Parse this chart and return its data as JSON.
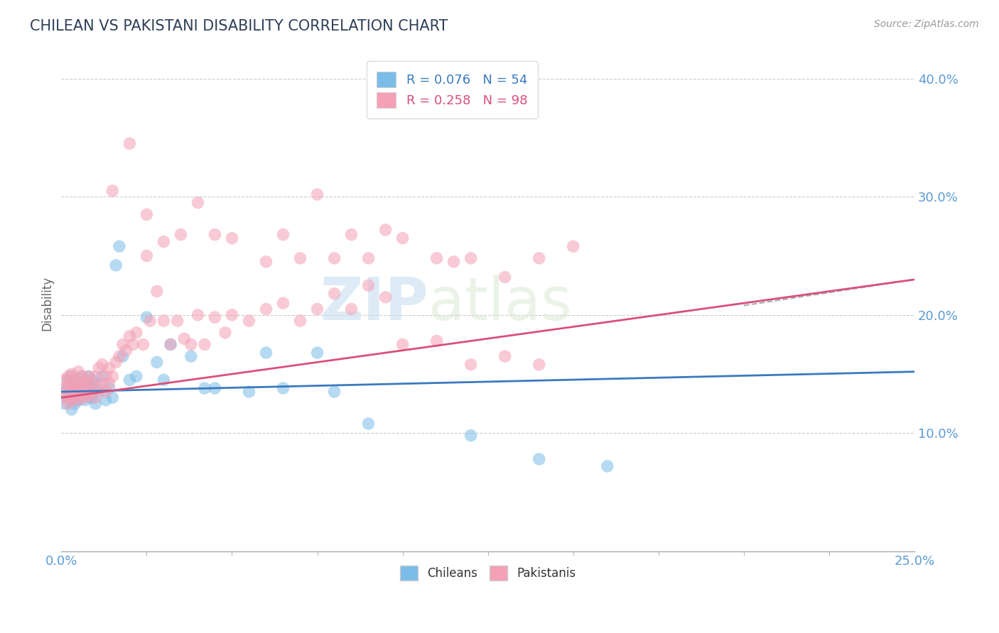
{
  "title": "CHILEAN VS PAKISTANI DISABILITY CORRELATION CHART",
  "source_text": "Source: ZipAtlas.com",
  "ylabel": "Disability",
  "xlim": [
    0.0,
    0.25
  ],
  "ylim": [
    0.0,
    0.42
  ],
  "xtick_positions": [
    0.0,
    0.25
  ],
  "xtick_labels": [
    "0.0%",
    "25.0%"
  ],
  "ytick_values": [
    0.1,
    0.2,
    0.3,
    0.4
  ],
  "ytick_labels": [
    "10.0%",
    "20.0%",
    "30.0%",
    "40.0%"
  ],
  "title_color": "#2e4057",
  "title_fontsize": 15,
  "blue_color": "#7bbde8",
  "pink_color": "#f4a0b5",
  "blue_line_color": "#3a7abf",
  "pink_line_color": "#d9507a",
  "tick_color": "#5b9bd5",
  "R_blue": 0.076,
  "N_blue": 54,
  "R_pink": 0.258,
  "N_pink": 98,
  "watermark_zip": "ZIP",
  "watermark_atlas": "atlas",
  "legend_label_blue": "Chileans",
  "legend_label_pink": "Pakistanis",
  "blue_scatter_x": [
    0.001,
    0.001,
    0.002,
    0.002,
    0.002,
    0.003,
    0.003,
    0.003,
    0.004,
    0.004,
    0.004,
    0.005,
    0.005,
    0.005,
    0.005,
    0.006,
    0.006,
    0.006,
    0.007,
    0.007,
    0.007,
    0.008,
    0.008,
    0.008,
    0.009,
    0.009,
    0.01,
    0.01,
    0.011,
    0.012,
    0.013,
    0.014,
    0.015,
    0.016,
    0.017,
    0.018,
    0.02,
    0.022,
    0.025,
    0.028,
    0.03,
    0.032,
    0.038,
    0.042,
    0.045,
    0.055,
    0.06,
    0.065,
    0.075,
    0.08,
    0.09,
    0.12,
    0.14,
    0.16
  ],
  "blue_scatter_y": [
    0.125,
    0.135,
    0.13,
    0.14,
    0.145,
    0.12,
    0.135,
    0.148,
    0.125,
    0.13,
    0.142,
    0.128,
    0.132,
    0.138,
    0.145,
    0.13,
    0.138,
    0.148,
    0.128,
    0.135,
    0.142,
    0.132,
    0.14,
    0.148,
    0.13,
    0.145,
    0.125,
    0.142,
    0.135,
    0.148,
    0.128,
    0.138,
    0.13,
    0.242,
    0.258,
    0.165,
    0.145,
    0.148,
    0.198,
    0.16,
    0.145,
    0.175,
    0.165,
    0.138,
    0.138,
    0.135,
    0.168,
    0.138,
    0.168,
    0.135,
    0.108,
    0.098,
    0.078,
    0.072
  ],
  "pink_scatter_x": [
    0.001,
    0.001,
    0.001,
    0.002,
    0.002,
    0.002,
    0.002,
    0.003,
    0.003,
    0.003,
    0.003,
    0.004,
    0.004,
    0.004,
    0.005,
    0.005,
    0.005,
    0.005,
    0.006,
    0.006,
    0.006,
    0.007,
    0.007,
    0.007,
    0.008,
    0.008,
    0.008,
    0.009,
    0.009,
    0.01,
    0.01,
    0.011,
    0.011,
    0.012,
    0.012,
    0.013,
    0.013,
    0.014,
    0.014,
    0.015,
    0.016,
    0.017,
    0.018,
    0.019,
    0.02,
    0.021,
    0.022,
    0.024,
    0.025,
    0.026,
    0.028,
    0.03,
    0.032,
    0.034,
    0.036,
    0.038,
    0.04,
    0.042,
    0.045,
    0.048,
    0.05,
    0.055,
    0.06,
    0.065,
    0.07,
    0.075,
    0.08,
    0.085,
    0.09,
    0.095,
    0.1,
    0.11,
    0.12,
    0.13,
    0.14,
    0.015,
    0.02,
    0.025,
    0.03,
    0.035,
    0.04,
    0.045,
    0.05,
    0.06,
    0.065,
    0.07,
    0.075,
    0.08,
    0.085,
    0.09,
    0.095,
    0.1,
    0.11,
    0.115,
    0.12,
    0.13,
    0.14,
    0.15
  ],
  "pink_scatter_y": [
    0.13,
    0.138,
    0.145,
    0.125,
    0.132,
    0.14,
    0.148,
    0.128,
    0.135,
    0.142,
    0.15,
    0.13,
    0.138,
    0.145,
    0.128,
    0.135,
    0.142,
    0.152,
    0.132,
    0.14,
    0.148,
    0.13,
    0.138,
    0.145,
    0.132,
    0.14,
    0.148,
    0.135,
    0.142,
    0.13,
    0.148,
    0.138,
    0.155,
    0.142,
    0.158,
    0.135,
    0.148,
    0.142,
    0.155,
    0.148,
    0.16,
    0.165,
    0.175,
    0.17,
    0.182,
    0.175,
    0.185,
    0.175,
    0.285,
    0.195,
    0.22,
    0.195,
    0.175,
    0.195,
    0.18,
    0.175,
    0.2,
    0.175,
    0.198,
    0.185,
    0.2,
    0.195,
    0.205,
    0.21,
    0.195,
    0.205,
    0.218,
    0.205,
    0.225,
    0.215,
    0.175,
    0.178,
    0.158,
    0.165,
    0.158,
    0.305,
    0.345,
    0.25,
    0.262,
    0.268,
    0.295,
    0.268,
    0.265,
    0.245,
    0.268,
    0.248,
    0.302,
    0.248,
    0.268,
    0.248,
    0.272,
    0.265,
    0.248,
    0.245,
    0.248,
    0.232,
    0.248,
    0.258
  ]
}
